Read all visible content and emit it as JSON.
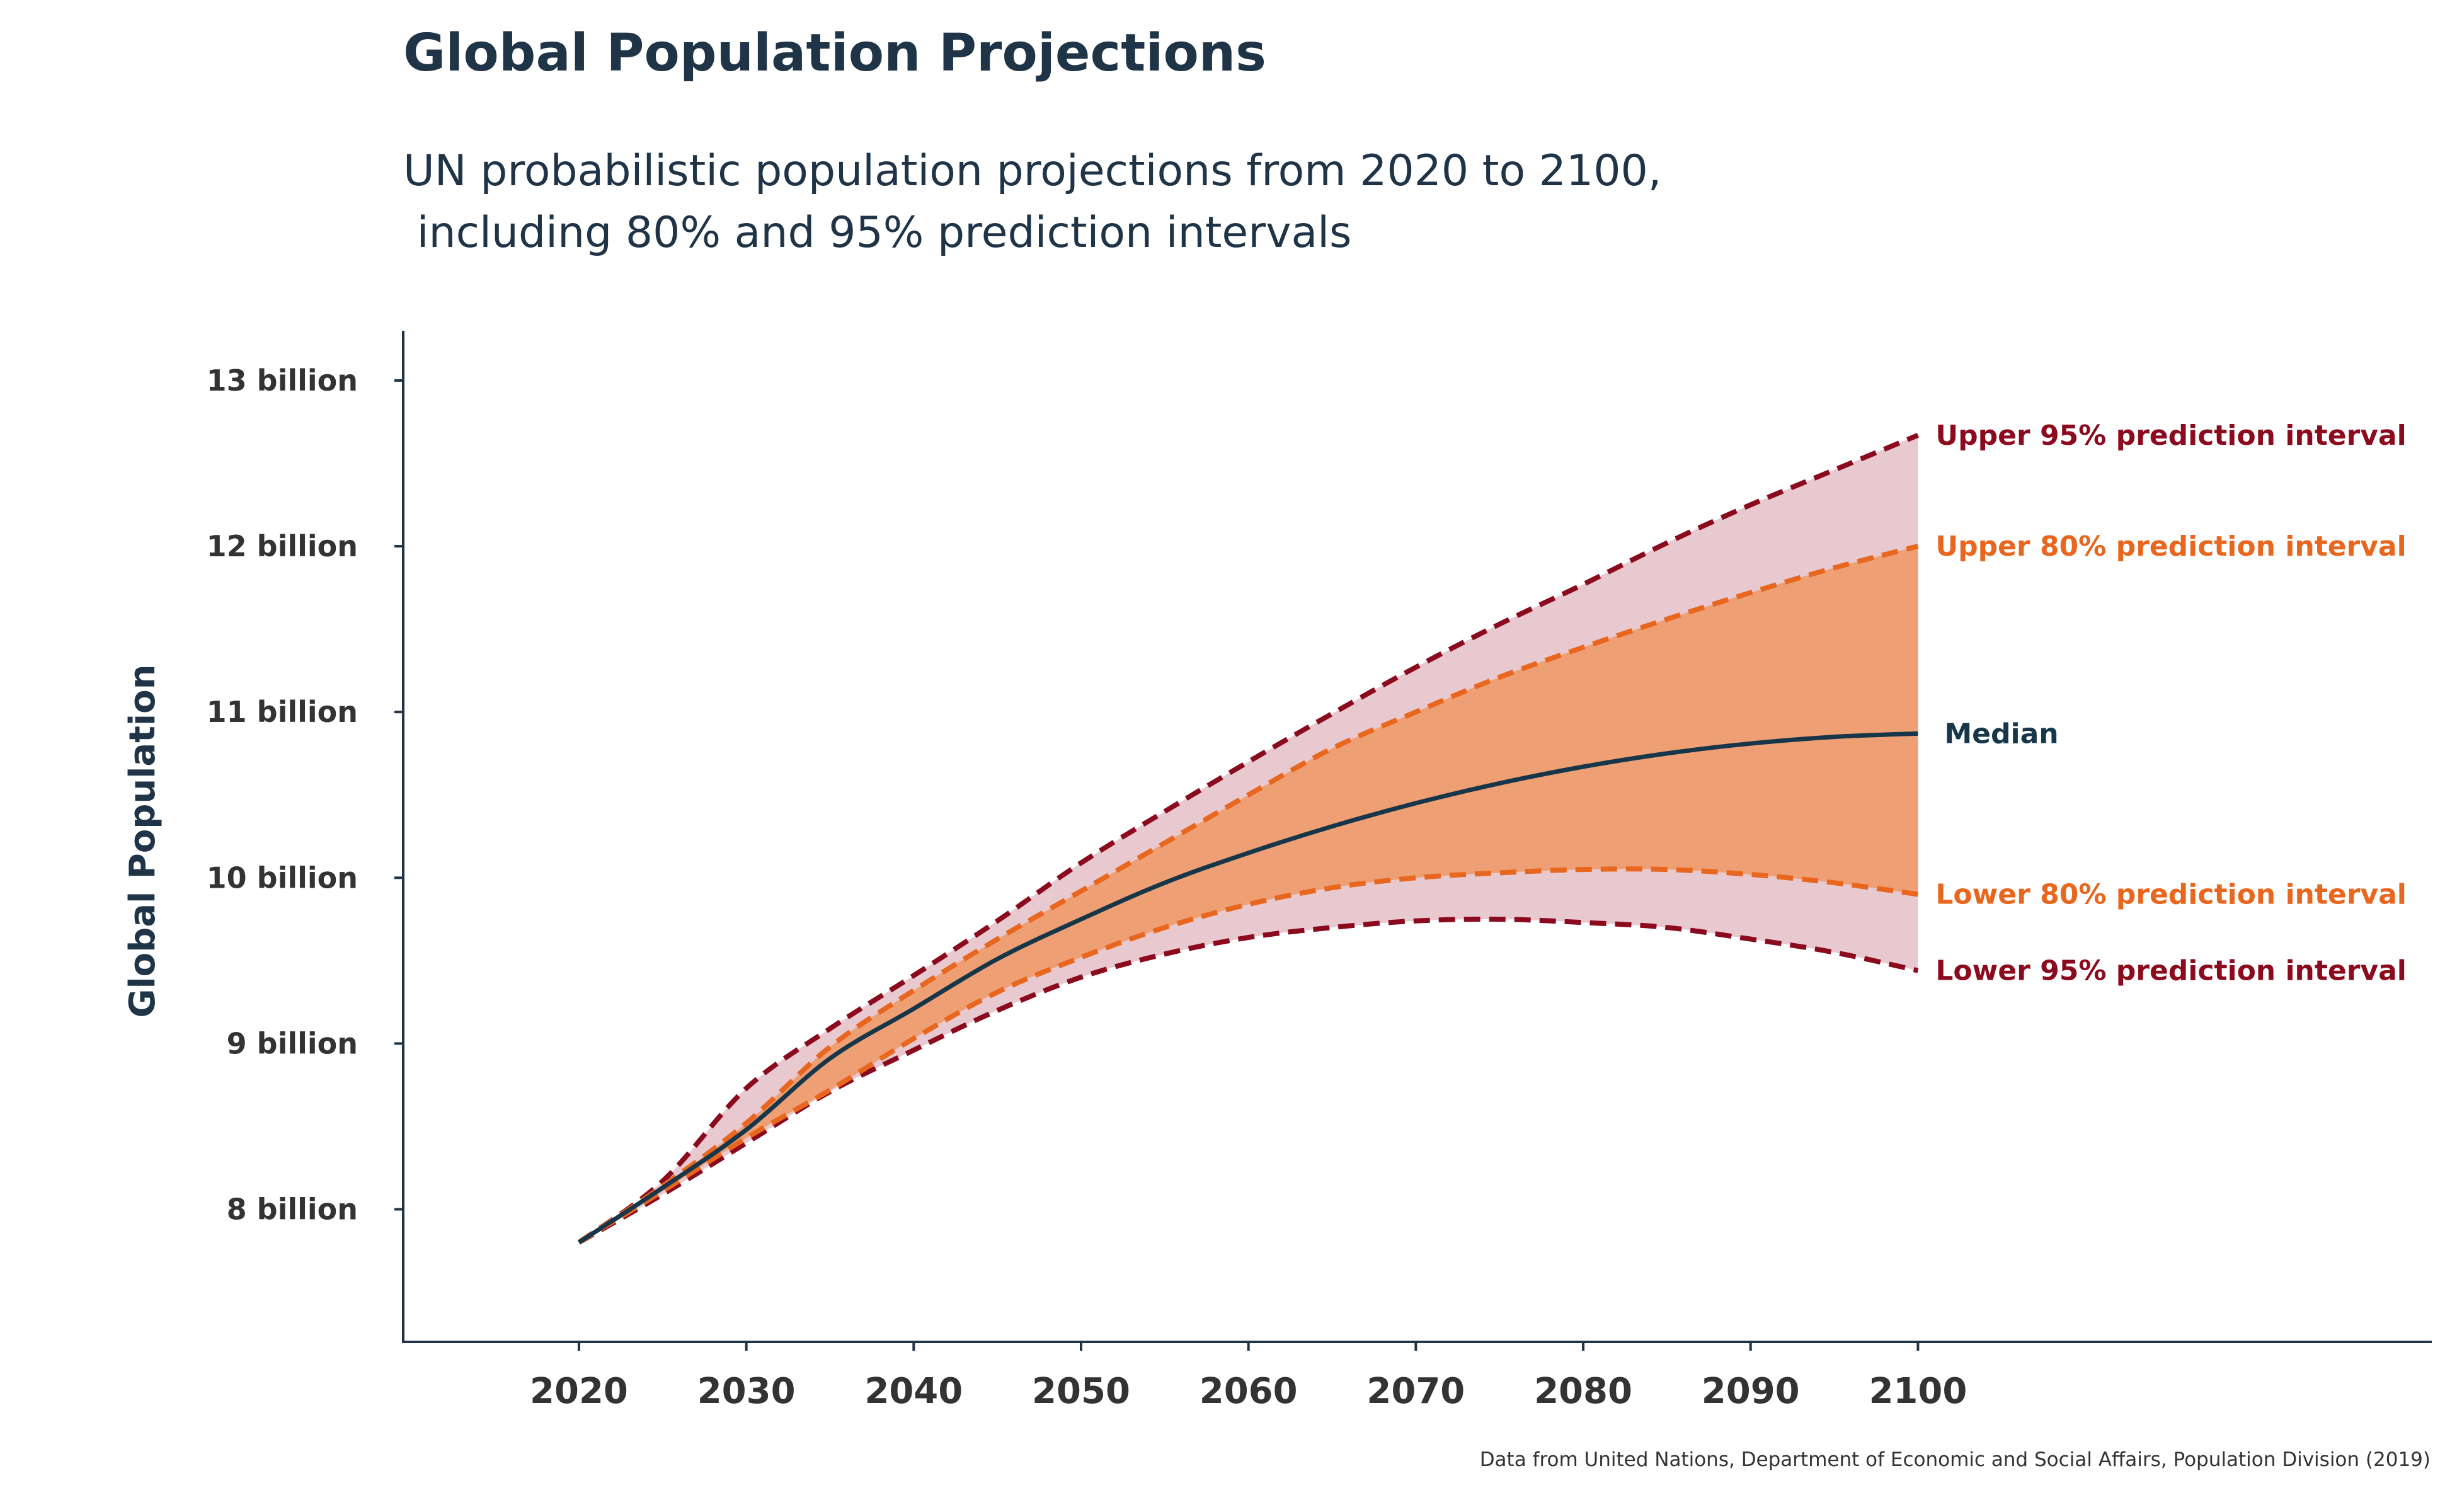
{
  "chart_data": {
    "type": "area",
    "title": "Global Population Projections",
    "subtitle_lines": [
      "UN probabilistic population projections from 2020 to 2100,",
      " including 80% and 95% prediction intervals"
    ],
    "ylabel": "Global Population",
    "xlabel": "",
    "x_ticks": [
      "2020",
      "2030",
      "2040",
      "2050",
      "2060",
      "2070",
      "2080",
      "2090",
      "2100"
    ],
    "y_ticks": [
      {
        "value": 8,
        "label": "8 billion"
      },
      {
        "value": 9,
        "label": "9 billion"
      },
      {
        "value": 10,
        "label": "10 billion"
      },
      {
        "value": 11,
        "label": "11 billion"
      },
      {
        "value": 12,
        "label": "12 billion"
      },
      {
        "value": 13,
        "label": "13 billion"
      }
    ],
    "xlim": [
      2009.5,
      2130.7
    ],
    "ylim": [
      7.2,
      13.3
    ],
    "grid": false,
    "x": [
      2020,
      2025,
      2030,
      2035,
      2040,
      2045,
      2050,
      2055,
      2060,
      2065,
      2070,
      2075,
      2080,
      2085,
      2090,
      2095,
      2100
    ],
    "series": [
      {
        "name": "Upper 95% prediction interval",
        "key": "upper95",
        "values": [
          7.8,
          8.17,
          8.73,
          9.09,
          9.41,
          9.74,
          10.09,
          10.4,
          10.7,
          10.99,
          11.27,
          11.53,
          11.77,
          12.02,
          12.25,
          12.46,
          12.67
        ],
        "color": "#8b0a1e",
        "dash": true
      },
      {
        "name": "Upper 80% prediction interval",
        "key": "upper80",
        "values": [
          7.8,
          8.14,
          8.52,
          8.98,
          9.32,
          9.63,
          9.92,
          10.21,
          10.5,
          10.78,
          11.0,
          11.21,
          11.39,
          11.56,
          11.72,
          11.87,
          12.0
        ],
        "color": "#e8661e",
        "dash": true
      },
      {
        "name": "Median",
        "key": "median",
        "values": [
          7.8,
          8.13,
          8.48,
          8.91,
          9.21,
          9.51,
          9.75,
          9.97,
          10.15,
          10.31,
          10.45,
          10.57,
          10.67,
          10.75,
          10.81,
          10.85,
          10.87
        ],
        "color": "#17364a",
        "dash": false
      },
      {
        "name": "Lower 80% prediction interval",
        "key": "lower80",
        "values": [
          7.8,
          8.11,
          8.43,
          8.72,
          9.03,
          9.31,
          9.52,
          9.7,
          9.84,
          9.94,
          10.0,
          10.03,
          10.05,
          10.05,
          10.02,
          9.97,
          9.9
        ],
        "color": "#e8661e",
        "dash": true
      },
      {
        "name": "Lower 95% prediction interval",
        "key": "lower95",
        "values": [
          7.8,
          8.09,
          8.4,
          8.71,
          8.96,
          9.2,
          9.4,
          9.54,
          9.64,
          9.7,
          9.74,
          9.75,
          9.73,
          9.7,
          9.63,
          9.55,
          9.44
        ],
        "color": "#8b0a1e",
        "dash": true
      }
    ],
    "bands": [
      {
        "upper": "upper95",
        "lower": "lower95",
        "color": "#e8c9cf"
      },
      {
        "upper": "upper80",
        "lower": "lower80",
        "color": "#eea074"
      }
    ],
    "source": "Data from United Nations, Department of Economic and Social Affairs, Population Division (2019)",
    "colors": {
      "title": "#1f3447",
      "axis": "#1f3447",
      "tick_text": "#333333",
      "upper_band_95": "#e8c9cf",
      "band_80": "#eea074"
    }
  }
}
